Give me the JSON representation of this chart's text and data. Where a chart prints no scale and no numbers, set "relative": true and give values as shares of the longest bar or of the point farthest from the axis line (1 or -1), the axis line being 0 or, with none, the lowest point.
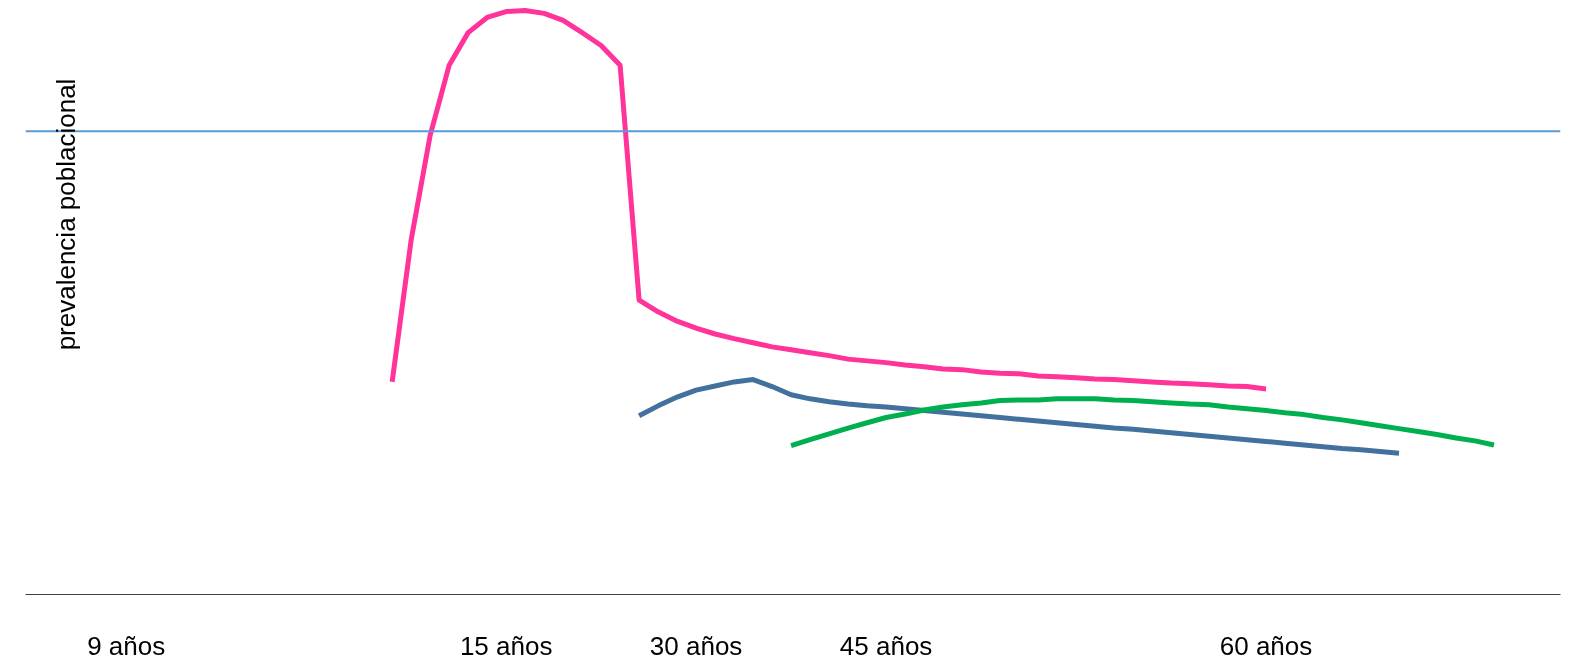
{
  "chart_data": {
    "type": "line",
    "relative": true,
    "ylabel": "prevalencia poblacional",
    "categories": [
      "9 años",
      null,
      null,
      null,
      null,
      null,
      null,
      null,
      null,
      null,
      null,
      null,
      null,
      null,
      null,
      null,
      null,
      null,
      null,
      null,
      "15 años",
      null,
      null,
      null,
      null,
      null,
      null,
      null,
      null,
      null,
      "30 años",
      null,
      null,
      null,
      null,
      null,
      null,
      null,
      null,
      null,
      "45 años",
      null,
      null,
      null,
      null,
      null,
      null,
      null,
      null,
      null,
      null,
      null,
      null,
      null,
      null,
      null,
      null,
      null,
      null,
      null,
      "60 años",
      null,
      null,
      null,
      null,
      null,
      null,
      null,
      null,
      null,
      null,
      null,
      null
    ],
    "tick_labels": "x",
    "grid": false,
    "line_style": "solid",
    "ref_lines": [
      {
        "axis": "y",
        "value": 0.793,
        "color": "#5b9bd5"
      }
    ],
    "series": [
      {
        "color": "#ff3399",
        "values": [
          null,
          null,
          null,
          null,
          null,
          null,
          null,
          null,
          null,
          null,
          null,
          null,
          null,
          null,
          0.364,
          0.607,
          0.786,
          0.906,
          0.962,
          0.988,
          0.998,
          1,
          0.995,
          0.983,
          0.962,
          0.94,
          0.906,
          0.504,
          0.484,
          0.468,
          0.456,
          0.446,
          0.438,
          0.431,
          0.424,
          0.419,
          0.414,
          0.409,
          0.403,
          0.4,
          0.397,
          0.393,
          0.39,
          0.386,
          0.385,
          0.381,
          0.379,
          0.378,
          0.374,
          0.373,
          0.371,
          0.369,
          0.368,
          0.366,
          0.364,
          0.362,
          0.361,
          0.359,
          0.357,
          0.356,
          0.352,
          null,
          null,
          null,
          null,
          null,
          null,
          null,
          null,
          null,
          null,
          null,
          null
        ]
      },
      {
        "color": "#41719c",
        "values": [
          null,
          null,
          null,
          null,
          null,
          null,
          null,
          null,
          null,
          null,
          null,
          null,
          null,
          null,
          null,
          null,
          null,
          null,
          null,
          null,
          null,
          null,
          null,
          null,
          null,
          null,
          null,
          0.306,
          0.323,
          0.338,
          0.35,
          0.357,
          0.364,
          0.368,
          0.356,
          0.342,
          0.335,
          0.33,
          0.326,
          0.323,
          0.321,
          0.318,
          0.315,
          0.312,
          0.309,
          0.306,
          0.303,
          0.3,
          0.297,
          0.294,
          0.291,
          0.288,
          0.285,
          0.283,
          0.28,
          0.277,
          0.274,
          0.271,
          0.268,
          0.265,
          0.262,
          0.259,
          0.256,
          0.253,
          0.25,
          0.248,
          0.245,
          0.242,
          null,
          null,
          null,
          null,
          null
        ]
      },
      {
        "color": "#00b050",
        "values": [
          null,
          null,
          null,
          null,
          null,
          null,
          null,
          null,
          null,
          null,
          null,
          null,
          null,
          null,
          null,
          null,
          null,
          null,
          null,
          null,
          null,
          null,
          null,
          null,
          null,
          null,
          null,
          null,
          null,
          null,
          null,
          null,
          null,
          null,
          null,
          0.255,
          0.265,
          0.275,
          0.285,
          0.294,
          0.303,
          0.309,
          0.316,
          0.321,
          0.325,
          0.328,
          0.332,
          0.333,
          0.333,
          0.335,
          0.335,
          0.335,
          0.333,
          0.332,
          0.33,
          0.328,
          0.326,
          0.325,
          0.321,
          0.318,
          0.315,
          0.311,
          0.308,
          0.303,
          0.299,
          0.294,
          0.289,
          0.284,
          0.279,
          0.274,
          0.268,
          0.263,
          0.256
        ]
      }
    ]
  }
}
